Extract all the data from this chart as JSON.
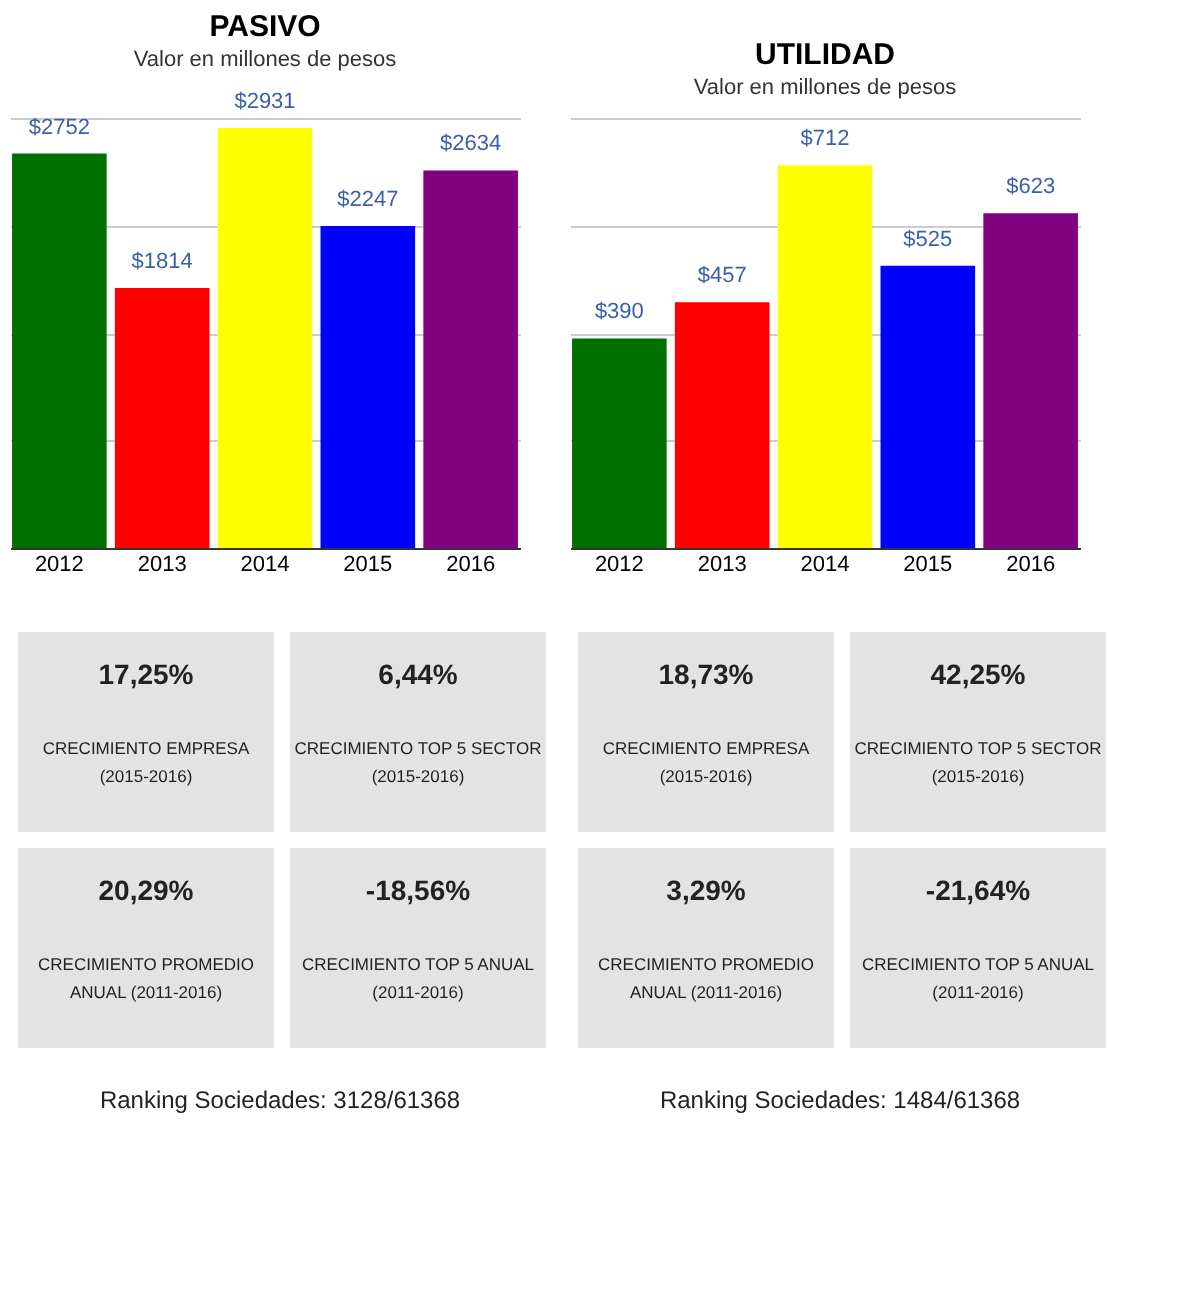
{
  "chart_data": [
    {
      "type": "bar",
      "title": "PASIVO",
      "subtitle": "Valor en millones de pesos",
      "categories": [
        "2012",
        "2013",
        "2014",
        "2015",
        "2016"
      ],
      "values": [
        2752,
        1814,
        2931,
        2247,
        2634
      ],
      "colors": [
        "#007000",
        "#ff0000",
        "#ffff00",
        "#0000ff",
        "#800080"
      ],
      "ylim": [
        0,
        3000
      ],
      "yticks": [
        {
          "value": 0,
          "label": null
        },
        {
          "value": 750,
          "label": null
        },
        {
          "value": 1500,
          "label": null
        },
        {
          "value": 2250,
          "label": null
        },
        {
          "value": 3000,
          "label": null
        }
      ],
      "tick_labels": "x",
      "grid": "y",
      "data_labels": true,
      "value_labels": [
        "$2752",
        "$1814",
        "$2931",
        "$2247",
        "$2634"
      ]
    },
    {
      "type": "other",
      "annotations": [
        "17,25%",
        "CRECIMIENTO EMPRESA\n(2015-2016)",
        "6,44%",
        "CRECIMIENTO TOP 5 SECTOR\n(2015-2016)",
        "20,29%",
        "CRECIMIENTO PROMEDIO\nANUAL (2011-2016)",
        "-18,56%",
        "CRECIMIENTO TOP 5 ANUAL\n(2011-2016)",
        "Ranking Sociedades: 3128/61368"
      ]
    },
    {
      "type": "bar",
      "title": "UTILIDAD",
      "subtitle": "Valor en millones de pesos",
      "categories": [
        "2012",
        "2013",
        "2014",
        "2015",
        "2016"
      ],
      "values": [
        390,
        457,
        712,
        525,
        623
      ],
      "colors": [
        "#007000",
        "#ff0000",
        "#ffff00",
        "#0000ff",
        "#800080"
      ],
      "ylim": [
        0,
        800
      ],
      "yticks": [
        {
          "value": 0,
          "label": null
        },
        {
          "value": 200,
          "label": null
        },
        {
          "value": 400,
          "label": null
        },
        {
          "value": 600,
          "label": null
        },
        {
          "value": 800,
          "label": null
        }
      ],
      "tick_labels": "x",
      "grid": "y",
      "data_labels": true,
      "value_labels": [
        "$390",
        "$457",
        "$712",
        "$525",
        "$623"
      ]
    },
    {
      "type": "other",
      "annotations": [
        "18,73%",
        "CRECIMIENTO EMPRESA\n(2015-2016)",
        "42,25%",
        "CRECIMIENTO TOP 5 SECTOR\n(2015-2016)",
        "3,29%",
        "CRECIMIENTO PROMEDIO\nANUAL (2011-2016)",
        "-21,64%",
        "CRECIMIENTO TOP 5 ANUAL\n(2011-2016)",
        "Ranking Sociedades: 1484/61368"
      ]
    }
  ]
}
